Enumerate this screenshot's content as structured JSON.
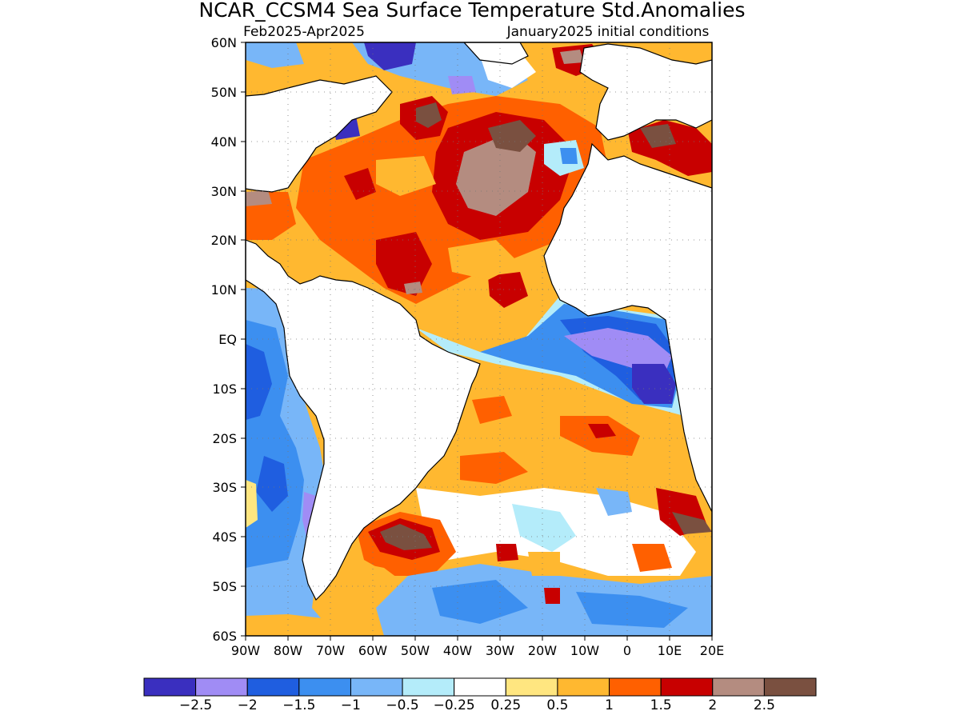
{
  "title": "NCAR_CCSM4 Sea Surface Temperature Std.Anomalies",
  "subtitle_left": "Feb2025-Apr2025",
  "subtitle_right": "January2025 initial conditions",
  "lat_labels": [
    "60N",
    "50N",
    "40N",
    "30N",
    "20N",
    "10N",
    "EQ",
    "10S",
    "20S",
    "30S",
    "40S",
    "50S",
    "60S"
  ],
  "lon_labels": [
    "90W",
    "80W",
    "70W",
    "60W",
    "50W",
    "40W",
    "30W",
    "20W",
    "10W",
    "0",
    "10E",
    "20E"
  ],
  "colorbar": {
    "colors": [
      "#3a2fbf",
      "#a08cf5",
      "#1f5ee0",
      "#3c8ff0",
      "#78b6f8",
      "#b4ecfa",
      "#ffffff",
      "#ffe680",
      "#ffb830",
      "#ff6000",
      "#c80000",
      "#b48c80",
      "#7a5040"
    ],
    "labels": [
      "-2.5",
      "-2",
      "-1.5",
      "-1",
      "-0.5",
      "-0.25",
      "0.25",
      "0.5",
      "1",
      "1.5",
      "2",
      "2.5"
    ]
  }
}
